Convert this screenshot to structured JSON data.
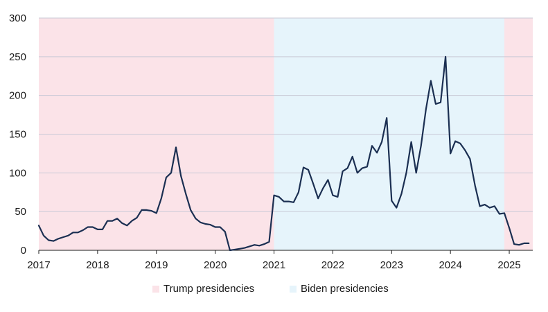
{
  "chart_data": {
    "type": "line",
    "title": "",
    "xlabel": "",
    "ylabel": "",
    "ylim": [
      0,
      300
    ],
    "yticks": [
      "0",
      "50",
      "100",
      "150",
      "200",
      "250",
      "300"
    ],
    "xticks": [
      "2017",
      "2018",
      "2019",
      "2020",
      "2021",
      "2022",
      "2023",
      "2024",
      "2025"
    ],
    "grid": "horizontal",
    "legend_position": "bottom",
    "colors": {
      "line": "#1b2f52",
      "trump": "#fbe3e8",
      "biden": "#e6f4fb",
      "gridline": "#c9c9d6"
    },
    "periods": [
      {
        "label": "Trump presidencies",
        "start": 2017.0,
        "end": 2021.0
      },
      {
        "label": "Biden presidencies",
        "start": 2021.0,
        "end": 2024.917
      },
      {
        "label": "Trump presidencies",
        "start": 2024.917,
        "end": 2025.4
      }
    ],
    "legend": [
      {
        "label": "Trump presidencies",
        "color": "#fbe3e8"
      },
      {
        "label": "Biden presidencies",
        "color": "#e6f4fb"
      }
    ],
    "series": [
      {
        "x": [
          2017.0,
          2017.083,
          2017.167,
          2017.25,
          2017.333,
          2017.417,
          2017.5,
          2017.583,
          2017.667,
          2017.75,
          2017.833,
          2017.917,
          2018.0,
          2018.083,
          2018.167,
          2018.25,
          2018.333,
          2018.417,
          2018.5,
          2018.583,
          2018.667,
          2018.75,
          2018.833,
          2018.917,
          2019.0,
          2019.083,
          2019.167,
          2019.25,
          2019.333,
          2019.417,
          2019.5,
          2019.583,
          2019.667,
          2019.75,
          2019.833,
          2019.917,
          2020.0,
          2020.083,
          2020.167,
          2020.25,
          2020.333,
          2020.417,
          2020.5,
          2020.583,
          2020.667,
          2020.75,
          2020.833,
          2020.917,
          2021.0,
          2021.083,
          2021.167,
          2021.25,
          2021.333,
          2021.417,
          2021.5,
          2021.583,
          2021.667,
          2021.75,
          2021.833,
          2021.917,
          2022.0,
          2022.083,
          2022.167,
          2022.25,
          2022.333,
          2022.417,
          2022.5,
          2022.583,
          2022.667,
          2022.75,
          2022.833,
          2022.917,
          2023.0,
          2023.083,
          2023.167,
          2023.25,
          2023.333,
          2023.417,
          2023.5,
          2023.583,
          2023.667,
          2023.75,
          2023.833,
          2023.917,
          2024.0,
          2024.083,
          2024.167,
          2024.25,
          2024.333,
          2024.417,
          2024.5,
          2024.583,
          2024.667,
          2024.75,
          2024.833,
          2024.917,
          2025.0,
          2025.083,
          2025.167,
          2025.25,
          2025.333
        ],
        "values": [
          32,
          19,
          13,
          12,
          15,
          17,
          19,
          23,
          23,
          26,
          30,
          30,
          27,
          27,
          38,
          38,
          41,
          35,
          32,
          38,
          42,
          52,
          52,
          51,
          48,
          67,
          94,
          100,
          133,
          96,
          73,
          52,
          41,
          36,
          34,
          33,
          30,
          30,
          24,
          0,
          1,
          2,
          3,
          5,
          7,
          6,
          8,
          11,
          71,
          69,
          63,
          63,
          62,
          75,
          107,
          104,
          86,
          67,
          80,
          91,
          71,
          69,
          102,
          106,
          121,
          100,
          106,
          108,
          135,
          126,
          140,
          171,
          64,
          55,
          73,
          100,
          140,
          100,
          135,
          182,
          219,
          189,
          191,
          250,
          125,
          141,
          138,
          129,
          118,
          84,
          57,
          59,
          55,
          57,
          47,
          48,
          29,
          8,
          7,
          9,
          9
        ]
      }
    ]
  }
}
